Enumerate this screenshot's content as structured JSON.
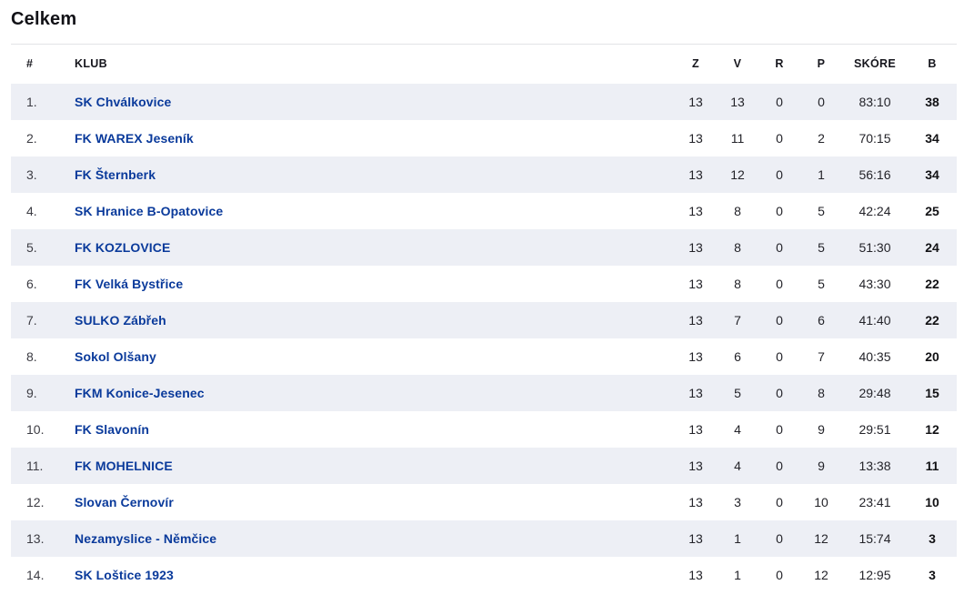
{
  "page": {
    "title": "Celkem"
  },
  "colors": {
    "club_link_blue": "#0a3a9b",
    "row_alt_background": "#edeff5",
    "header_border": "#e2e3e7",
    "text_dark": "#16161d"
  },
  "table": {
    "headers": {
      "pos": "#",
      "klub": "KLUB",
      "z": "Z",
      "v": "V",
      "r": "R",
      "p": "P",
      "skore": "SKÓRE",
      "b": "B"
    },
    "rows": [
      {
        "pos": "1.",
        "club": "SK Chválkovice",
        "z": "13",
        "v": "13",
        "r": "0",
        "p": "0",
        "score": "83:10",
        "b": "38"
      },
      {
        "pos": "2.",
        "club": "FK WAREX Jeseník",
        "z": "13",
        "v": "11",
        "r": "0",
        "p": "2",
        "score": "70:15",
        "b": "34"
      },
      {
        "pos": "3.",
        "club": "FK Šternberk",
        "z": "13",
        "v": "12",
        "r": "0",
        "p": "1",
        "score": "56:16",
        "b": "34"
      },
      {
        "pos": "4.",
        "club": "SK Hranice B-Opatovice",
        "z": "13",
        "v": "8",
        "r": "0",
        "p": "5",
        "score": "42:24",
        "b": "25"
      },
      {
        "pos": "5.",
        "club": "FK KOZLOVICE",
        "z": "13",
        "v": "8",
        "r": "0",
        "p": "5",
        "score": "51:30",
        "b": "24"
      },
      {
        "pos": "6.",
        "club": "FK Velká Bystřice",
        "z": "13",
        "v": "8",
        "r": "0",
        "p": "5",
        "score": "43:30",
        "b": "22"
      },
      {
        "pos": "7.",
        "club": "SULKO Zábřeh",
        "z": "13",
        "v": "7",
        "r": "0",
        "p": "6",
        "score": "41:40",
        "b": "22"
      },
      {
        "pos": "8.",
        "club": "Sokol Olšany",
        "z": "13",
        "v": "6",
        "r": "0",
        "p": "7",
        "score": "40:35",
        "b": "20"
      },
      {
        "pos": "9.",
        "club": "FKM Konice-Jesenec",
        "z": "13",
        "v": "5",
        "r": "0",
        "p": "8",
        "score": "29:48",
        "b": "15"
      },
      {
        "pos": "10.",
        "club": "FK Slavonín",
        "z": "13",
        "v": "4",
        "r": "0",
        "p": "9",
        "score": "29:51",
        "b": "12"
      },
      {
        "pos": "11.",
        "club": "FK MOHELNICE",
        "z": "13",
        "v": "4",
        "r": "0",
        "p": "9",
        "score": "13:38",
        "b": "11"
      },
      {
        "pos": "12.",
        "club": "Slovan Černovír",
        "z": "13",
        "v": "3",
        "r": "0",
        "p": "10",
        "score": "23:41",
        "b": "10"
      },
      {
        "pos": "13.",
        "club": "Nezamyslice - Němčice",
        "z": "13",
        "v": "1",
        "r": "0",
        "p": "12",
        "score": "15:74",
        "b": "3"
      },
      {
        "pos": "14.",
        "club": "SK Loštice 1923",
        "z": "13",
        "v": "1",
        "r": "0",
        "p": "12",
        "score": "12:95",
        "b": "3"
      }
    ]
  }
}
